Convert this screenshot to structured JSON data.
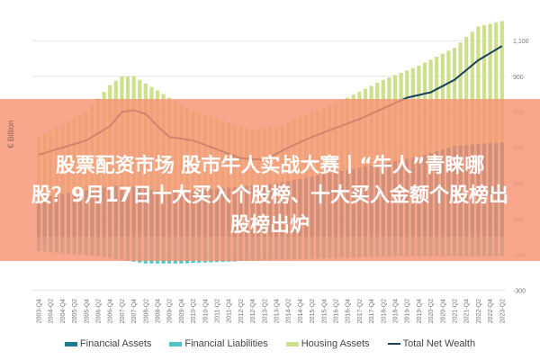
{
  "chart_data": {
    "type": "bar",
    "title": "",
    "ylabel": "€ Billion",
    "xlabel": "",
    "ylim": [
      -300,
      1200
    ],
    "yticks": [
      1100,
      900,
      700,
      500,
      300,
      100,
      -100,
      -300
    ],
    "ytick_labels": [
      "1,100",
      "900",
      "700",
      "500",
      "300",
      "100",
      "-100",
      "-300"
    ],
    "grid": true,
    "legend_position": "bottom",
    "first_quarter": "2003-Q4",
    "xtick_labels": [
      "2003-Q4",
      "2004-Q2",
      "2004-Q4",
      "2005-Q2",
      "2005-Q4",
      "2006-Q2",
      "2006-Q4",
      "2007-Q2",
      "2007-Q4",
      "2008-Q2",
      "2008-Q4",
      "2009-Q2",
      "2009-Q4",
      "2010-Q2",
      "2010-Q4",
      "2011-Q2",
      "2011-Q4",
      "2012-Q2",
      "2012-Q4",
      "2013-Q2",
      "2013-Q4",
      "2014-Q2",
      "2014-Q4",
      "2015-Q2",
      "2015-Q4",
      "2016-Q2",
      "2016-Q4",
      "2017-Q2",
      "2017-Q4",
      "2018-Q2",
      "2018-Q4",
      "2019-Q2",
      "2019-Q4",
      "2020-Q2",
      "2020-Q4",
      "2021-Q2",
      "2021-Q4",
      "2022-Q2",
      "2022-Q4",
      "2023-Q2"
    ],
    "series": [
      {
        "name": "Financial Assets",
        "kind": "bar",
        "color": "#1f7a91",
        "values": [
          220,
          225,
          230,
          235,
          240,
          245,
          250,
          255,
          260,
          265,
          270,
          275,
          280,
          285,
          290,
          285,
          280,
          275,
          270,
          265,
          260,
          255,
          250,
          253,
          255,
          258,
          260,
          263,
          265,
          268,
          270,
          273,
          276,
          279,
          282,
          285,
          288,
          291,
          294,
          297,
          300,
          306,
          313,
          319,
          325,
          331,
          338,
          344,
          350,
          356,
          363,
          369,
          375,
          381,
          388,
          394,
          400,
          406,
          413,
          419,
          425,
          431,
          438,
          444,
          450,
          460,
          470,
          480,
          490,
          500,
          510,
          513,
          515,
          518,
          520,
          523,
          525,
          528,
          530
        ]
      },
      {
        "name": "Financial Liabilities",
        "kind": "bar",
        "color": "#4fc4c9",
        "values": [
          -80,
          -83,
          -86,
          -89,
          -92,
          -95,
          -98,
          -101,
          -104,
          -107,
          -110,
          -115,
          -120,
          -125,
          -130,
          -135,
          -140,
          -145,
          -150,
          -150,
          -150,
          -150,
          -150,
          -150,
          -150,
          -149,
          -147,
          -146,
          -145,
          -144,
          -142,
          -141,
          -140,
          -139,
          -137,
          -136,
          -135,
          -134,
          -132,
          -131,
          -130,
          -129,
          -128,
          -127,
          -126,
          -125,
          -124,
          -123,
          -122,
          -121,
          -120,
          -119,
          -118,
          -117,
          -116,
          -115,
          -114,
          -113,
          -112,
          -111,
          -110,
          -110,
          -110,
          -110,
          -110,
          -110,
          -110,
          -110,
          -110,
          -110,
          -110,
          -110,
          -110,
          -110,
          -110,
          -110,
          -110,
          -110,
          -110
        ]
      },
      {
        "name": "Housing Assets",
        "kind": "bar",
        "color": "#cde08c",
        "values": [
          340,
          353,
          365,
          378,
          390,
          403,
          415,
          428,
          440,
          473,
          505,
          538,
          570,
          590,
          610,
          615,
          620,
          605,
          590,
          575,
          560,
          545,
          530,
          507,
          485,
          469,
          453,
          437,
          422,
          405,
          390,
          377,
          364,
          351,
          338,
          325,
          312,
          314,
          316,
          318,
          320,
          327,
          334,
          341,
          348,
          356,
          362,
          369,
          377,
          384,
          390,
          398,
          405,
          416,
          425,
          436,
          447,
          457,
          467,
          474,
          482,
          489,
          495,
          503,
          510,
          517,
          523,
          530,
          537,
          543,
          550,
          577,
          605,
          632,
          660,
          665,
          670,
          675,
          680
        ]
      },
      {
        "name": "Total Net Wealth",
        "kind": "line",
        "color": "#1b3f5c",
        "values": [
          460,
          470,
          480,
          490,
          500,
          510,
          520,
          530,
          540,
          560,
          580,
          600,
          620,
          660,
          700,
          705,
          710,
          700,
          690,
          655,
          620,
          590,
          560,
          555,
          550,
          545,
          540,
          528,
          515,
          503,
          490,
          478,
          465,
          453,
          440,
          438,
          435,
          433,
          430,
          448,
          465,
          483,
          500,
          515,
          530,
          545,
          560,
          573,
          585,
          598,
          610,
          623,
          635,
          648,
          660,
          675,
          690,
          705,
          720,
          735,
          750,
          765,
          780,
          788,
          795,
          803,
          810,
          828,
          845,
          863,
          880,
          908,
          935,
          963,
          990,
          1010,
          1030,
          1050,
          1070
        ]
      }
    ]
  },
  "banner": {
    "line1": "股票配资市场 股市牛人实战大赛丨“牛人”青睐哪",
    "line2": "股？9月17日十大买入个股榜、十大买入金额个股榜出",
    "line3": "股榜出炉"
  }
}
